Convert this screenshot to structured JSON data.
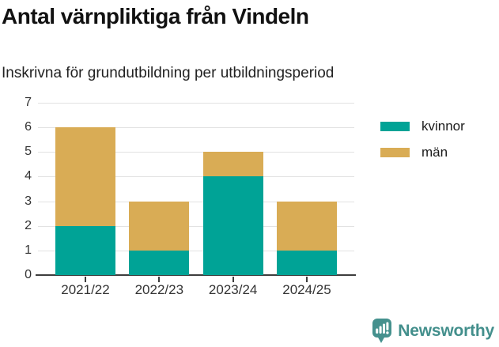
{
  "header": {
    "title": "Antal värnpliktiga från Vindeln",
    "subtitle": "Inskrivna för grundutbildning per utbildningsperiod"
  },
  "chart_data": {
    "type": "bar",
    "stacked": true,
    "title": "Antal värnpliktiga från Vindeln",
    "subtitle": "Inskrivna för grundutbildning per utbildningsperiod",
    "categories": [
      "2021/22",
      "2022/23",
      "2023/24",
      "2024/25"
    ],
    "series": [
      {
        "name": "kvinnor",
        "color": "#00a396",
        "values": [
          2,
          1,
          4,
          1
        ]
      },
      {
        "name": "män",
        "color": "#d9ac55",
        "values": [
          4,
          2,
          1,
          2
        ]
      }
    ],
    "totals": [
      6,
      3,
      5,
      3
    ],
    "xlabel": "",
    "ylabel": "",
    "ylim": [
      0,
      7
    ],
    "yticks": [
      0,
      1,
      2,
      3,
      4,
      5,
      6,
      7
    ],
    "grid": true,
    "legend_position": "right",
    "gridline_color": "#e2e2e2",
    "axis_color": "#3d3d3d",
    "tick_label_color": "#333333"
  },
  "footer": {
    "brand": "Newsworthy",
    "brand_color": "#438f8c",
    "logo_icon": "bar-chart-speech-bubble-icon"
  }
}
